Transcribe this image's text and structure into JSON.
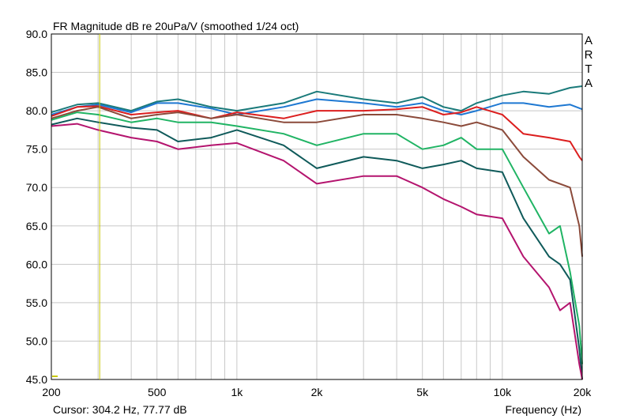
{
  "window": {
    "title": "FR Magnitude dB re 20uPa/V (smoothed 1/24 oct)",
    "brand": "ARTA"
  },
  "status": {
    "cursor": "Cursor: 304.2 Hz, 77.77 dB",
    "xlabel": "Frequency (Hz)"
  },
  "chart_data": {
    "type": "line",
    "title": "FR Magnitude dB re 20uPa/V (smoothed 1/24 oct)",
    "xlabel": "Frequency (Hz)",
    "ylabel": "",
    "xscale": "log",
    "xlim": [
      200,
      20000
    ],
    "ylim": [
      45,
      90
    ],
    "grid": true,
    "xticks": [
      200,
      500,
      1000,
      2000,
      5000,
      10000,
      20000
    ],
    "xtick_labels": [
      "200",
      "500",
      "1k",
      "2k",
      "5k",
      "10k",
      "20k"
    ],
    "yticks": [
      45,
      50,
      55,
      60,
      65,
      70,
      75,
      80,
      85,
      90
    ],
    "ytick_labels": [
      "45.0",
      "50.0",
      "55.0",
      "60.0",
      "65.0",
      "70.0",
      "75.0",
      "80.0",
      "85.0",
      "90.0"
    ],
    "cursor": {
      "x": 304.2,
      "y": 77.77,
      "color": "#c8c800"
    },
    "series": [
      {
        "color": "#1a7a7a",
        "x": [
          200,
          250,
          300,
          400,
          500,
          600,
          800,
          1000,
          1500,
          2000,
          3000,
          4000,
          5000,
          6000,
          7000,
          8000,
          10000,
          12000,
          15000,
          18000,
          20000
        ],
        "y": [
          79.8,
          80.8,
          81.0,
          80.0,
          81.2,
          81.5,
          80.5,
          80.0,
          81.0,
          82.5,
          81.5,
          81.0,
          81.8,
          80.5,
          80.0,
          81.0,
          82.0,
          82.5,
          82.2,
          83.0,
          83.2
        ]
      },
      {
        "color": "#1e78d2",
        "x": [
          200,
          250,
          300,
          400,
          500,
          600,
          800,
          1000,
          1500,
          2000,
          3000,
          4000,
          5000,
          6000,
          7000,
          8000,
          10000,
          12000,
          15000,
          18000,
          20000
        ],
        "y": [
          79.5,
          80.5,
          80.8,
          79.8,
          81.0,
          81.0,
          80.3,
          79.5,
          80.5,
          81.5,
          81.0,
          80.5,
          81.0,
          80.0,
          79.5,
          80.0,
          81.0,
          81.0,
          80.5,
          80.8,
          80.2
        ]
      },
      {
        "color": "#dc1e1e",
        "x": [
          200,
          250,
          300,
          400,
          500,
          600,
          800,
          1000,
          1500,
          2000,
          3000,
          4000,
          5000,
          6000,
          7000,
          8000,
          10000,
          12000,
          15000,
          18000,
          19500,
          20000
        ],
        "y": [
          79.3,
          80.5,
          80.6,
          79.5,
          79.8,
          80.0,
          79.0,
          79.8,
          79.0,
          80.0,
          80.0,
          80.2,
          80.5,
          79.5,
          79.8,
          80.5,
          79.5,
          77.0,
          76.5,
          76.0,
          74.0,
          73.5
        ]
      },
      {
        "color": "#8b4a3a",
        "x": [
          200,
          250,
          300,
          400,
          500,
          600,
          800,
          1000,
          1500,
          2000,
          3000,
          4000,
          5000,
          6000,
          7000,
          8000,
          10000,
          12000,
          15000,
          18000,
          19500,
          20000
        ],
        "y": [
          79.0,
          80.0,
          80.5,
          79.0,
          79.5,
          79.8,
          79.0,
          79.5,
          78.5,
          78.5,
          79.5,
          79.5,
          79.0,
          78.5,
          78.0,
          78.5,
          77.5,
          74.0,
          71.0,
          70.0,
          65.0,
          61.0
        ]
      },
      {
        "color": "#20b464",
        "x": [
          200,
          250,
          300,
          400,
          500,
          600,
          800,
          1000,
          1500,
          2000,
          3000,
          4000,
          5000,
          6000,
          7000,
          8000,
          10000,
          12000,
          15000,
          16500,
          18000,
          19500,
          20000
        ],
        "y": [
          78.8,
          79.8,
          79.5,
          78.5,
          79.0,
          78.5,
          78.5,
          78.0,
          77.0,
          75.5,
          77.0,
          77.0,
          75.0,
          75.5,
          76.5,
          75.0,
          75.0,
          70.0,
          64.0,
          65.0,
          59.0,
          52.0,
          47.0
        ]
      },
      {
        "color": "#0f5a5a",
        "x": [
          200,
          250,
          300,
          400,
          500,
          600,
          800,
          1000,
          1500,
          2000,
          3000,
          4000,
          5000,
          6000,
          7000,
          8000,
          10000,
          12000,
          15000,
          16500,
          18000,
          19500,
          20000
        ],
        "y": [
          78.2,
          79.0,
          78.5,
          77.8,
          77.5,
          76.0,
          76.5,
          77.5,
          75.5,
          72.5,
          74.0,
          73.5,
          72.5,
          73.0,
          73.5,
          72.5,
          72.0,
          66.0,
          61.0,
          60.0,
          58.0,
          49.0,
          45.0
        ]
      },
      {
        "color": "#b4146e",
        "x": [
          200,
          250,
          300,
          400,
          500,
          600,
          800,
          1000,
          1500,
          2000,
          3000,
          4000,
          5000,
          6000,
          7000,
          8000,
          10000,
          12000,
          15000,
          16500,
          18000,
          19500,
          20000
        ],
        "y": [
          78.0,
          78.3,
          77.5,
          76.5,
          76.0,
          75.0,
          75.5,
          75.8,
          73.5,
          70.5,
          71.5,
          71.5,
          70.0,
          68.5,
          67.5,
          66.5,
          66.0,
          61.0,
          57.0,
          54.0,
          55.0,
          47.0,
          45.0
        ]
      }
    ]
  }
}
